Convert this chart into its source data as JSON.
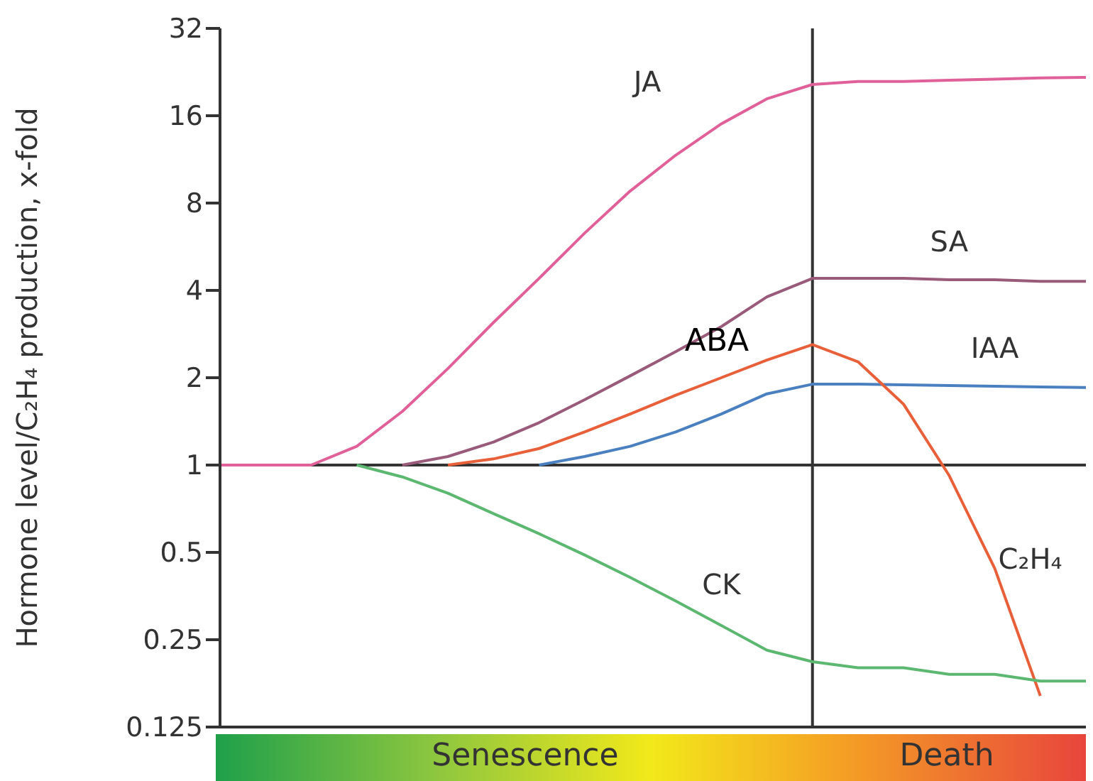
{
  "chart_data": {
    "type": "line",
    "ylabel": "Hormone level/C₂H₄ production, x-fold",
    "categories": [
      null,
      null,
      null,
      null,
      null,
      null,
      null,
      null,
      null,
      null,
      null,
      null,
      null,
      null,
      null,
      null,
      null,
      null,
      null,
      null
    ],
    "series": [
      {
        "name": "JA",
        "color": "#e0609a",
        "values": [
          1,
          1,
          1,
          1.16,
          1.53,
          2.15,
          3.1,
          4.4,
          6.3,
          8.8,
          11.7,
          15,
          18.3,
          20.5,
          21,
          21,
          21.2,
          21.4,
          21.6,
          21.7
        ]
      },
      {
        "name": "SA",
        "color": "#9a5a7a",
        "values": [
          null,
          null,
          null,
          null,
          1,
          1.07,
          1.2,
          1.4,
          1.68,
          2.03,
          2.46,
          3,
          3.8,
          4.4,
          4.4,
          4.4,
          4.35,
          4.35,
          4.3,
          4.3
        ]
      },
      {
        "name": "IAA",
        "color": "#4a80c0",
        "values": [
          null,
          null,
          null,
          null,
          null,
          null,
          null,
          1,
          1.07,
          1.16,
          1.3,
          1.5,
          1.76,
          1.9,
          1.9,
          1.89,
          1.88,
          1.87,
          1.86,
          1.85
        ]
      },
      {
        "name": "C₂H₄",
        "color": "#e8603a",
        "values": [
          null,
          null,
          null,
          null,
          null,
          1,
          1.05,
          1.14,
          1.3,
          1.5,
          1.74,
          2,
          2.3,
          2.6,
          2.27,
          1.62,
          0.92,
          0.44,
          0.16,
          null
        ]
      },
      {
        "name": "CK",
        "color": "#5cb870",
        "values": [
          null,
          null,
          null,
          1,
          0.91,
          0.8,
          0.68,
          0.58,
          0.49,
          0.41,
          0.34,
          0.28,
          0.23,
          0.21,
          0.2,
          0.2,
          0.19,
          0.19,
          0.18,
          0.18
        ]
      }
    ],
    "ylim": [
      0.125,
      32
    ],
    "yticks": [
      0.125,
      0.25,
      0.5,
      1,
      2,
      4,
      8,
      16,
      32
    ],
    "log": "y",
    "grid": false,
    "legend": false,
    "marker": "none",
    "line_style": "solid",
    "ref_lines": [
      {
        "axis": "y",
        "value": 1,
        "color": "#333333"
      }
    ],
    "annotations": [
      "ABA",
      "Senescence",
      "Death"
    ]
  }
}
